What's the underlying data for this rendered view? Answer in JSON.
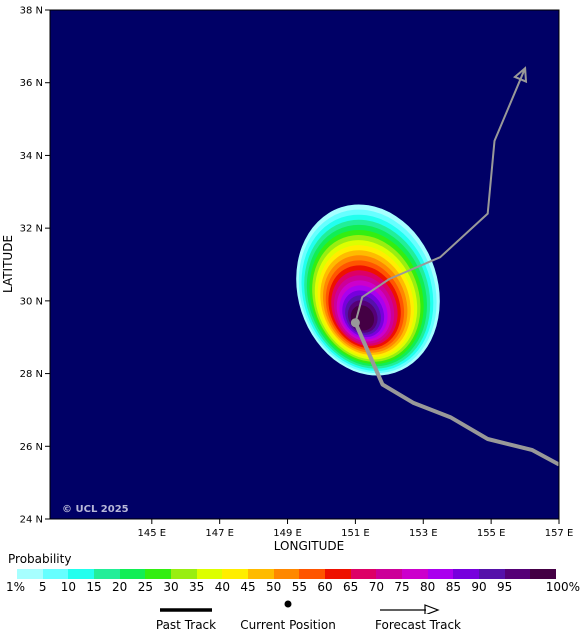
{
  "map": {
    "copyright": "© UCL 2025",
    "xlabel": "LONGITUDE",
    "ylabel": "LATITUDE",
    "background_color": "#000066",
    "lon_range": [
      142.0,
      157.0
    ],
    "lat_range": [
      24.0,
      38.0
    ],
    "x_ticks": [
      {
        "value": 145,
        "label": "145 E"
      },
      {
        "value": 147,
        "label": "147 E"
      },
      {
        "value": 149,
        "label": "149 E"
      },
      {
        "value": 151,
        "label": "151 E"
      },
      {
        "value": 153,
        "label": "153 E"
      },
      {
        "value": 155,
        "label": "155 E"
      },
      {
        "value": 157,
        "label": "157 E"
      }
    ],
    "y_ticks": [
      {
        "value": 24,
        "label": "24 N"
      },
      {
        "value": 26,
        "label": "26 N"
      },
      {
        "value": 28,
        "label": "28 N"
      },
      {
        "value": 30,
        "label": "30 N"
      },
      {
        "value": 32,
        "label": "32 N"
      },
      {
        "value": 34,
        "label": "34 N"
      },
      {
        "value": 36,
        "label": "36 N"
      },
      {
        "value": 38,
        "label": "38 N"
      }
    ],
    "past_track": [
      [
        157.0,
        25.5
      ],
      [
        156.2,
        25.9
      ],
      [
        154.9,
        26.2
      ],
      [
        153.8,
        26.8
      ],
      [
        152.7,
        27.2
      ],
      [
        151.8,
        27.7
      ],
      [
        151.0,
        29.4
      ]
    ],
    "current_position": [
      151.0,
      29.4
    ],
    "forecast_track": [
      [
        151.0,
        29.4
      ],
      [
        151.2,
        30.1
      ],
      [
        152.0,
        30.6
      ],
      [
        153.5,
        31.2
      ],
      [
        154.9,
        32.4
      ],
      [
        155.1,
        34.4
      ],
      [
        156.0,
        36.4
      ]
    ],
    "probability_core": [
      151.2,
      29.5
    ]
  },
  "legend": {
    "title": "Probability",
    "levels": [
      {
        "label": "1%",
        "color": "#a6ffff"
      },
      {
        "label": "5",
        "color": "#66ffff"
      },
      {
        "label": "10",
        "color": "#22ffee"
      },
      {
        "label": "15",
        "color": "#22ee99"
      },
      {
        "label": "20",
        "color": "#11ee55"
      },
      {
        "label": "25",
        "color": "#33ee11"
      },
      {
        "label": "30",
        "color": "#99ee11"
      },
      {
        "label": "35",
        "color": "#ddff00"
      },
      {
        "label": "40",
        "color": "#ffee00"
      },
      {
        "label": "45",
        "color": "#ffbb00"
      },
      {
        "label": "50",
        "color": "#ff8800"
      },
      {
        "label": "55",
        "color": "#ff5500"
      },
      {
        "label": "60",
        "color": "#ee1100"
      },
      {
        "label": "65",
        "color": "#dd0066"
      },
      {
        "label": "70",
        "color": "#cc0099"
      },
      {
        "label": "75",
        "color": "#cc00cc"
      },
      {
        "label": "80",
        "color": "#aa00ee"
      },
      {
        "label": "85",
        "color": "#7700dd"
      },
      {
        "label": "90",
        "color": "#5511aa"
      },
      {
        "label": "95",
        "color": "#550077"
      },
      {
        "label": "100%",
        "color": "#440044"
      }
    ],
    "track_items": {
      "past": "Past Track",
      "current": "Current Position",
      "forecast": "Forecast Track"
    }
  }
}
